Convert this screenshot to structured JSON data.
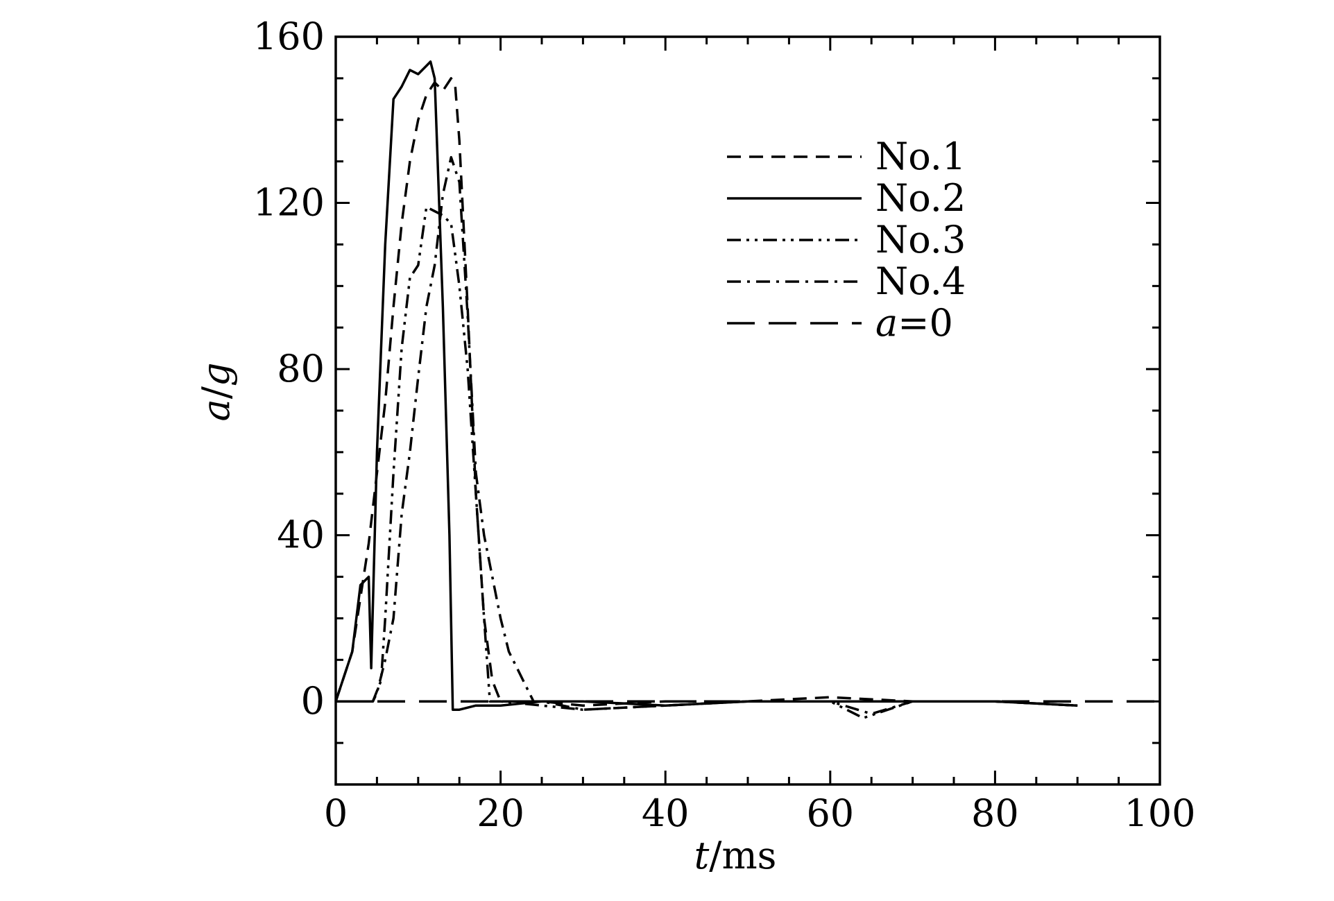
{
  "chart_data": {
    "type": "line",
    "title": "",
    "xlabel": {
      "italic": "t",
      "rest": "/ms"
    },
    "ylabel": {
      "italic1": "a",
      "sep": "/",
      "italic2": "g"
    },
    "xlim": [
      0,
      100
    ],
    "ylim": [
      -20,
      160
    ],
    "x_ticks": [
      0,
      20,
      40,
      60,
      80,
      100
    ],
    "y_ticks": [
      0,
      40,
      80,
      120,
      160
    ],
    "x_tick_labels": [
      "0",
      "20",
      "40",
      "60",
      "80",
      "100"
    ],
    "y_tick_labels": [
      "0",
      "40",
      "80",
      "120",
      "160"
    ],
    "x_minor_step": 5,
    "y_minor_step": 10,
    "grid": false,
    "legend_position": "top-right",
    "series": [
      {
        "name": "No.1",
        "style": "dashed",
        "color": "#000000",
        "x": [
          0,
          2,
          3,
          4,
          5,
          6,
          7,
          8,
          9,
          10,
          11,
          12,
          13,
          14,
          14.5,
          15,
          16,
          17,
          18,
          19,
          20,
          25,
          30,
          40,
          50,
          60,
          70,
          80,
          90
        ],
        "y": [
          0,
          12,
          25,
          38,
          55,
          72,
          95,
          115,
          130,
          140,
          146,
          149,
          147,
          150,
          148,
          135,
          95,
          50,
          20,
          5,
          0,
          0,
          -1,
          0,
          0,
          1,
          0,
          0,
          -1
        ]
      },
      {
        "name": "No.2",
        "style": "solid",
        "color": "#000000",
        "x": [
          0,
          2,
          3,
          4,
          4.3,
          5,
          6,
          7,
          8,
          9,
          10,
          11,
          11.5,
          12,
          13,
          13.8,
          14.2,
          15,
          17,
          20,
          25,
          30,
          40,
          50,
          60,
          70,
          80,
          90
        ],
        "y": [
          0,
          12,
          28,
          30,
          8,
          60,
          110,
          145,
          148,
          152,
          151,
          153,
          154,
          150,
          95,
          40,
          -2,
          -2,
          -1,
          -1,
          0,
          0,
          -1,
          0,
          0,
          0,
          0,
          -1
        ]
      },
      {
        "name": "No.3",
        "style": "dash-dot-dot",
        "color": "#000000",
        "x": [
          0,
          4.5,
          5.5,
          6,
          7,
          8,
          9,
          10,
          11,
          12,
          13,
          14,
          15,
          16,
          17,
          18,
          18.7,
          19.2,
          20,
          25,
          30,
          40,
          50,
          60,
          64,
          70,
          80,
          90
        ],
        "y": [
          0,
          0,
          5,
          20,
          55,
          85,
          102,
          105,
          119,
          118,
          117,
          115,
          100,
          80,
          50,
          20,
          0,
          0,
          0,
          -1,
          -2,
          -1,
          0,
          0,
          -4,
          0,
          0,
          -1
        ]
      },
      {
        "name": "No.4",
        "style": "dash-dot",
        "color": "#000000",
        "x": [
          0,
          4.5,
          5,
          6,
          7,
          8,
          9,
          10,
          11,
          12,
          13,
          14,
          15,
          16,
          17,
          18,
          19,
          20,
          21,
          22,
          23,
          24,
          25,
          30,
          40,
          50,
          60,
          65,
          70,
          80,
          90
        ],
        "y": [
          0,
          0,
          2,
          10,
          20,
          45,
          60,
          78,
          95,
          105,
          122,
          131,
          125,
          93,
          55,
          40,
          30,
          20,
          12,
          8,
          4,
          0,
          0,
          -2,
          -1,
          0,
          0,
          -3,
          0,
          0,
          -1
        ]
      },
      {
        "name": "a=0",
        "name_italic": "a",
        "name_rest": "=0",
        "style": "long-dash",
        "color": "#000000",
        "x": [
          0,
          100
        ],
        "y": [
          0,
          0
        ]
      }
    ]
  }
}
